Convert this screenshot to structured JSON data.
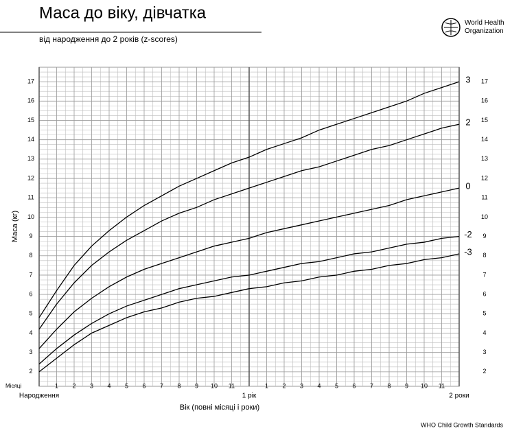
{
  "header": {
    "organization": "World Health Organization"
  },
  "footer": "WHO Child Growth Standards",
  "chart_data": {
    "type": "line",
    "title": "Маса до віку, дівчатка",
    "subtitle": "від народження до 2 років (z-scores)",
    "x_label": "Вік (повні місяці і роки)",
    "x_unit_label": "Місяці",
    "y_label": "Маса (кг)",
    "x": [
      0,
      1,
      2,
      3,
      4,
      5,
      6,
      7,
      8,
      9,
      10,
      11,
      12,
      13,
      14,
      15,
      16,
      17,
      18,
      19,
      20,
      21,
      22,
      23,
      24
    ],
    "series": [
      {
        "name": "3",
        "color": "#000000",
        "values": [
          4.8,
          6.2,
          7.5,
          8.5,
          9.3,
          10.0,
          10.6,
          11.1,
          11.6,
          12.0,
          12.4,
          12.8,
          13.1,
          13.5,
          13.8,
          14.1,
          14.5,
          14.8,
          15.1,
          15.4,
          15.7,
          16.0,
          16.4,
          16.7,
          17.0
        ]
      },
      {
        "name": "2",
        "color": "#000000",
        "values": [
          4.2,
          5.5,
          6.6,
          7.5,
          8.2,
          8.8,
          9.3,
          9.8,
          10.2,
          10.5,
          10.9,
          11.2,
          11.5,
          11.8,
          12.1,
          12.4,
          12.6,
          12.9,
          13.2,
          13.5,
          13.7,
          14.0,
          14.3,
          14.6,
          14.8
        ]
      },
      {
        "name": "0",
        "color": "#000000",
        "values": [
          3.2,
          4.2,
          5.1,
          5.8,
          6.4,
          6.9,
          7.3,
          7.6,
          7.9,
          8.2,
          8.5,
          8.7,
          8.9,
          9.2,
          9.4,
          9.6,
          9.8,
          10.0,
          10.2,
          10.4,
          10.6,
          10.9,
          11.1,
          11.3,
          11.5
        ]
      },
      {
        "name": "-2",
        "color": "#000000",
        "values": [
          2.4,
          3.2,
          3.9,
          4.5,
          5.0,
          5.4,
          5.7,
          6.0,
          6.3,
          6.5,
          6.7,
          6.9,
          7.0,
          7.2,
          7.4,
          7.6,
          7.7,
          7.9,
          8.1,
          8.2,
          8.4,
          8.6,
          8.7,
          8.9,
          9.0
        ]
      },
      {
        "name": "-3",
        "color": "#000000",
        "values": [
          2.0,
          2.7,
          3.4,
          4.0,
          4.4,
          4.8,
          5.1,
          5.3,
          5.6,
          5.8,
          5.9,
          6.1,
          6.3,
          6.4,
          6.6,
          6.7,
          6.9,
          7.0,
          7.2,
          7.3,
          7.5,
          7.6,
          7.8,
          7.9,
          8.1
        ]
      }
    ],
    "xlim": [
      0,
      24
    ],
    "xticks": [
      {
        "value": 0,
        "label": "Народження"
      },
      1,
      2,
      3,
      4,
      5,
      6,
      7,
      8,
      9,
      10,
      11,
      {
        "value": 12,
        "label": "1 рік"
      },
      {
        "value": 13,
        "label": "1"
      },
      {
        "value": 14,
        "label": "2"
      },
      {
        "value": 15,
        "label": "3"
      },
      {
        "value": 16,
        "label": "4"
      },
      {
        "value": 17,
        "label": "5"
      },
      {
        "value": 18,
        "label": "6"
      },
      {
        "value": 19,
        "label": "7"
      },
      {
        "value": 20,
        "label": "8"
      },
      {
        "value": 21,
        "label": "9"
      },
      {
        "value": 22,
        "label": "10"
      },
      {
        "value": 23,
        "label": "11"
      },
      {
        "value": 24,
        "label": "2 роки"
      }
    ],
    "ylim": [
      1.25,
      17.75
    ],
    "yticks": [
      2,
      3,
      4,
      5,
      6,
      7,
      8,
      9,
      10,
      11,
      12,
      13,
      14,
      15,
      16,
      17
    ],
    "grid": true
  }
}
